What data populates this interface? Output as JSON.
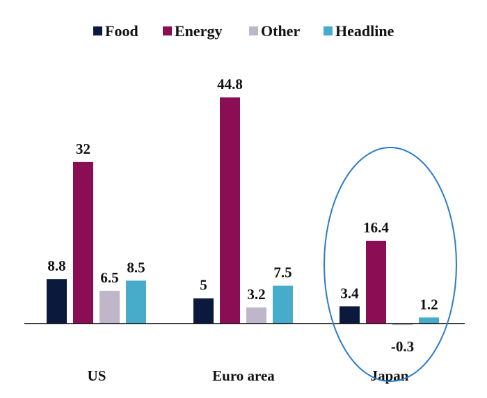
{
  "chart_data": {
    "type": "bar",
    "categories": [
      "US",
      "Euro area",
      "Japan"
    ],
    "series": [
      {
        "name": "Food",
        "color": "#0b1a3c",
        "values": [
          8.8,
          5,
          3.4
        ]
      },
      {
        "name": "Energy",
        "color": "#8b0d54",
        "values": [
          32,
          44.8,
          16.4
        ]
      },
      {
        "name": "Other",
        "color": "#c0b6c9",
        "values": [
          6.5,
          3.2,
          -0.3
        ]
      },
      {
        "name": "Headline",
        "color": "#46acc9",
        "values": [
          8.5,
          7.5,
          1.2
        ]
      }
    ],
    "data_labels": [
      [
        "8.8",
        "5",
        "3.4"
      ],
      [
        "32",
        "44.8",
        "16.4"
      ],
      [
        "6.5",
        "3.2",
        "-0.3"
      ],
      [
        "8.5",
        "7.5",
        "1.2"
      ]
    ],
    "legend_position": "top-center",
    "grid": false,
    "ylim": [
      -0.3,
      44.8
    ],
    "annotation": {
      "type": "ellipse",
      "highlights": "Japan",
      "color": "#2a7bc8"
    }
  }
}
